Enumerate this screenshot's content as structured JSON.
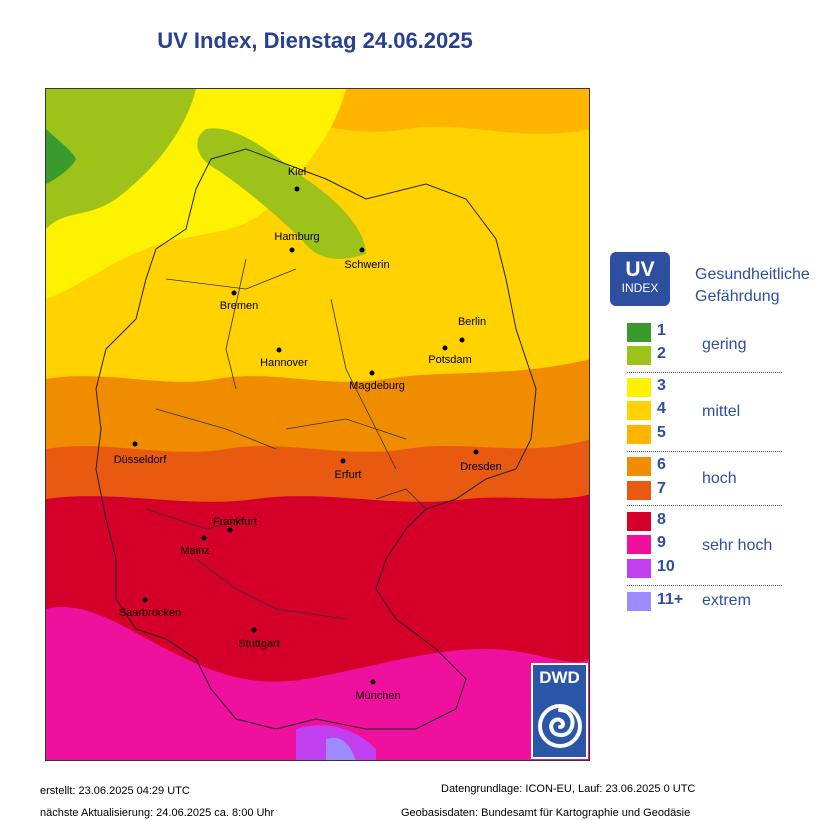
{
  "title": "UV Index, Dienstag 24.06.2025",
  "legend": {
    "badge_big": "UV",
    "badge_small": "INDEX",
    "heading_line1": "Gesundheitliche",
    "heading_line2": "Gefährdung",
    "levels": [
      {
        "label": "1",
        "color": "#3a9a2e"
      },
      {
        "label": "2",
        "color": "#9dc21a"
      },
      {
        "label": "3",
        "color": "#fff200"
      },
      {
        "label": "4",
        "color": "#ffd200"
      },
      {
        "label": "5",
        "color": "#ffb400"
      },
      {
        "label": "6",
        "color": "#f08c00"
      },
      {
        "label": "7",
        "color": "#e85a10"
      },
      {
        "label": "8",
        "color": "#d4002a"
      },
      {
        "label": "9",
        "color": "#f0109e"
      },
      {
        "label": "10",
        "color": "#c040f0"
      },
      {
        "label": "11+",
        "color": "#9e8cff"
      }
    ],
    "categories": [
      "gering",
      "mittel",
      "hoch",
      "sehr hoch",
      "extrem"
    ]
  },
  "cities": [
    {
      "name": "Kiel"
    },
    {
      "name": "Hamburg"
    },
    {
      "name": "Schwerin"
    },
    {
      "name": "Bremen"
    },
    {
      "name": "Berlin"
    },
    {
      "name": "Potsdam"
    },
    {
      "name": "Hannover"
    },
    {
      "name": "Magdeburg"
    },
    {
      "name": "Düsseldorf"
    },
    {
      "name": "Erfurt"
    },
    {
      "name": "Dresden"
    },
    {
      "name": "Frankfurt"
    },
    {
      "name": "Mainz"
    },
    {
      "name": "Saarbrücken"
    },
    {
      "name": "Stuttgart"
    },
    {
      "name": "München"
    }
  ],
  "logo_text": "DWD",
  "footer": {
    "created": "erstellt: 23.06.2025 04:29 UTC",
    "next_update": "nächste Aktualisierung:  24.06.2025 ca. 8:00 Uhr",
    "data_basis": "Datengrundlage: ICON-EU, Lauf: 23.06.2025 0 UTC",
    "geo_basis": "Geobasisdaten: Bundesamt für Kartographie und Geodäsie"
  }
}
